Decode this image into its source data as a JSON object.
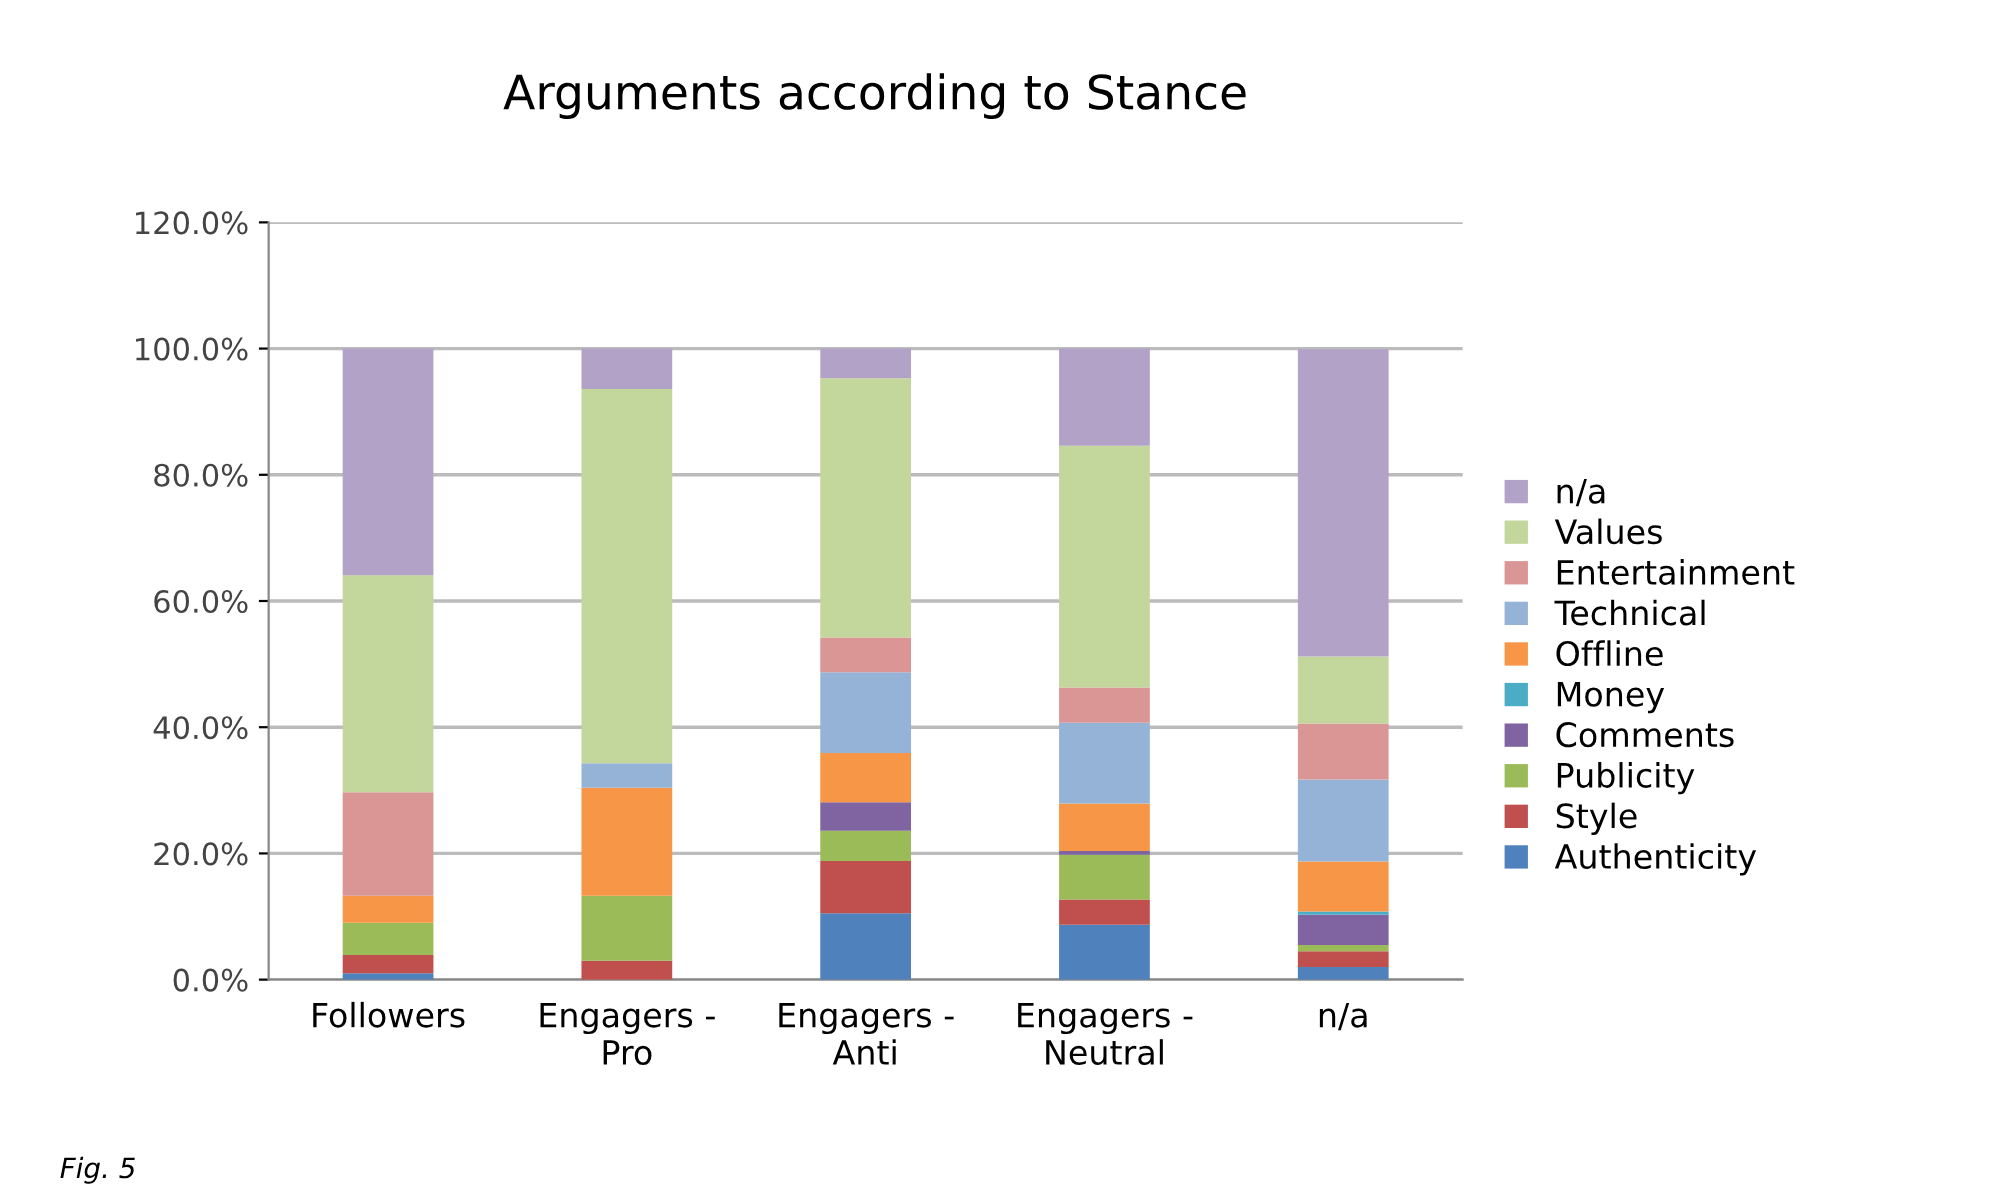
{
  "chart_data": {
    "type": "bar",
    "stacked": true,
    "title": "Arguments according to Stance",
    "categories": [
      "Followers",
      "Engagers -\nPro",
      "Engagers -\nAnti",
      "Engagers -\nNeutral",
      "n/a"
    ],
    "series": [
      {
        "name": "Authenticity",
        "color": "#4f81bd",
        "values": [
          1.0,
          0,
          10.5,
          8.7,
          2.0
        ]
      },
      {
        "name": "Style",
        "color": "#c0504d",
        "values": [
          2.9,
          3.0,
          8.3,
          4.0,
          2.5
        ]
      },
      {
        "name": "Publicity",
        "color": "#9bbb59",
        "values": [
          5.1,
          10.3,
          4.8,
          7.1,
          1.0
        ]
      },
      {
        "name": "Comments",
        "color": "#8064a2",
        "values": [
          0,
          0,
          4.5,
          0.6,
          4.8
        ]
      },
      {
        "name": "Money",
        "color": "#4bacc6",
        "values": [
          0,
          0,
          0,
          0,
          0.5
        ]
      },
      {
        "name": "Offline",
        "color": "#f79646",
        "values": [
          4.3,
          17.1,
          7.8,
          7.5,
          7.9
        ]
      },
      {
        "name": "Technical",
        "color": "#95b3d7",
        "values": [
          0,
          3.9,
          12.8,
          12.8,
          13.0
        ]
      },
      {
        "name": "Entertainment",
        "color": "#d99694",
        "values": [
          16.4,
          0,
          5.5,
          5.6,
          8.9
        ]
      },
      {
        "name": "Values",
        "color": "#c3d69b",
        "values": [
          34.4,
          59.3,
          41.1,
          38.3,
          10.6
        ]
      },
      {
        "name": "n/a",
        "color": "#b3a2c7",
        "values": [
          35.9,
          6.4,
          4.7,
          15.4,
          48.7
        ]
      }
    ],
    "ylim": [
      0,
      120
    ],
    "yticks": [
      {
        "value": 0,
        "label": "0.0%"
      },
      {
        "value": 20,
        "label": "20.0%"
      },
      {
        "value": 40,
        "label": "40.0%"
      },
      {
        "value": 60,
        "label": "60.0%"
      },
      {
        "value": 80,
        "label": "80.0%"
      },
      {
        "value": 100,
        "label": "100.0%"
      },
      {
        "value": 120,
        "label": "120.0%"
      }
    ],
    "grid": "y",
    "legend": "right",
    "annotations": [
      "Fig. 5"
    ]
  }
}
